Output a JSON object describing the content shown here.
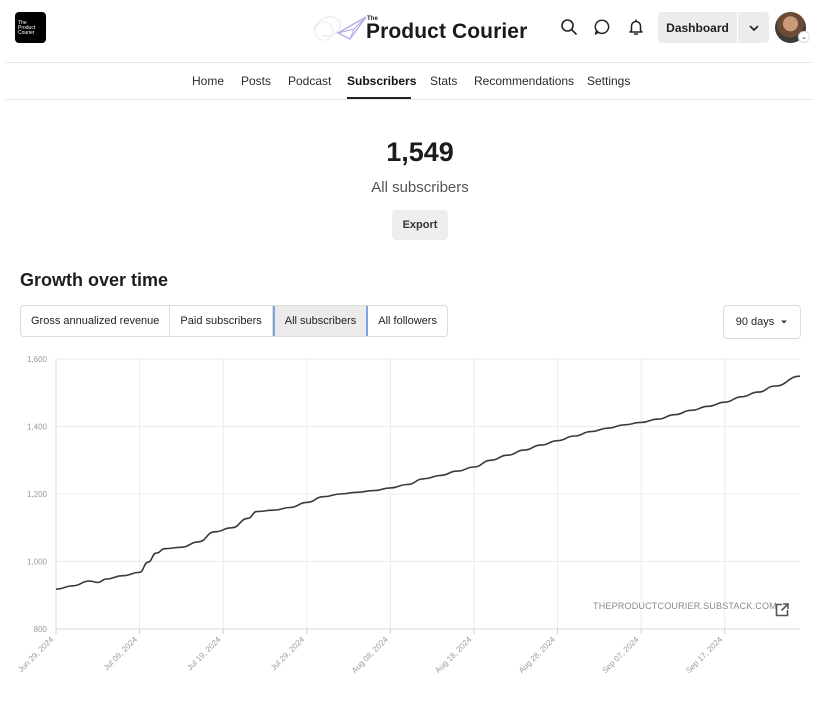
{
  "header": {
    "logo_lines": [
      "The",
      "Product",
      "Courier"
    ],
    "brand_small": "The",
    "brand_title": "Product Courier",
    "dashboard_label": "Dashboard"
  },
  "nav": {
    "items": [
      {
        "label": "Home",
        "active": false
      },
      {
        "label": "Posts",
        "active": false
      },
      {
        "label": "Podcast",
        "active": false
      },
      {
        "label": "Subscribers",
        "active": true
      },
      {
        "label": "Stats",
        "active": false
      },
      {
        "label": "Recommendations",
        "active": false
      },
      {
        "label": "Settings",
        "active": false
      }
    ]
  },
  "summary": {
    "count": "1,549",
    "label": "All subscribers",
    "export_label": "Export"
  },
  "growth": {
    "title": "Growth over time",
    "tabs": [
      {
        "label": "Gross annualized revenue",
        "active": false
      },
      {
        "label": "Paid subscribers",
        "active": false
      },
      {
        "label": "All subscribers",
        "active": true
      },
      {
        "label": "All followers",
        "active": false
      }
    ],
    "range_label": "90 days",
    "watermark": "THEPRODUCTCOURIER.SUBSTACK.COM"
  },
  "icons": {
    "search": "search-icon",
    "chat": "chat-bubble-icon",
    "bell": "bell-icon",
    "chevron": "chevron-down-icon",
    "external": "external-link-icon"
  },
  "chart_data": {
    "type": "line",
    "title": "",
    "xlabel": "",
    "ylabel": "",
    "ylim": [
      800,
      1600
    ],
    "yticks": [
      800,
      1000,
      1200,
      1400,
      1600
    ],
    "ytick_labels": [
      "800",
      "1,000",
      "1,200",
      "1,400",
      "1,600"
    ],
    "xlim": [
      "2024-06-29",
      "2024-09-26"
    ],
    "xticks": [
      "2024-06-29",
      "2024-07-09",
      "2024-07-19",
      "2024-07-29",
      "2024-08-08",
      "2024-08-18",
      "2024-08-28",
      "2024-09-07",
      "2024-09-17"
    ],
    "xtick_labels": [
      "Jun 29, 2024",
      "Jul 09, 2024",
      "Jul 19, 2024",
      "Jul 29, 2024",
      "Aug 08, 2024",
      "Aug 18, 2024",
      "Aug 28, 2024",
      "Sep 07, 2024",
      "Sep 17, 2024"
    ],
    "grid": true,
    "line_color": "#3a3a3a",
    "series": [
      {
        "x": [
          "2024-06-29",
          "2024-07-01",
          "2024-07-03",
          "2024-07-04",
          "2024-07-05",
          "2024-07-07",
          "2024-07-09",
          "2024-07-10",
          "2024-07-11",
          "2024-07-12",
          "2024-07-14",
          "2024-07-16",
          "2024-07-18",
          "2024-07-20",
          "2024-07-22",
          "2024-07-23",
          "2024-07-25",
          "2024-07-27",
          "2024-07-29",
          "2024-07-31",
          "2024-08-02",
          "2024-08-04",
          "2024-08-06",
          "2024-08-08",
          "2024-08-10",
          "2024-08-12",
          "2024-08-14",
          "2024-08-16",
          "2024-08-18",
          "2024-08-20",
          "2024-08-22",
          "2024-08-24",
          "2024-08-26",
          "2024-08-28",
          "2024-08-30",
          "2024-09-01",
          "2024-09-03",
          "2024-09-05",
          "2024-09-07",
          "2024-09-09",
          "2024-09-11",
          "2024-09-13",
          "2024-09-15",
          "2024-09-17",
          "2024-09-19",
          "2024-09-21",
          "2024-09-23",
          "2024-09-26"
        ],
        "y": [
          918,
          928,
          942,
          938,
          948,
          958,
          968,
          998,
          1025,
          1038,
          1042,
          1058,
          1088,
          1100,
          1128,
          1148,
          1152,
          1160,
          1175,
          1192,
          1200,
          1205,
          1210,
          1218,
          1228,
          1245,
          1255,
          1268,
          1280,
          1300,
          1315,
          1330,
          1345,
          1358,
          1372,
          1385,
          1395,
          1405,
          1412,
          1422,
          1435,
          1448,
          1460,
          1472,
          1488,
          1502,
          1520,
          1549
        ]
      }
    ]
  }
}
